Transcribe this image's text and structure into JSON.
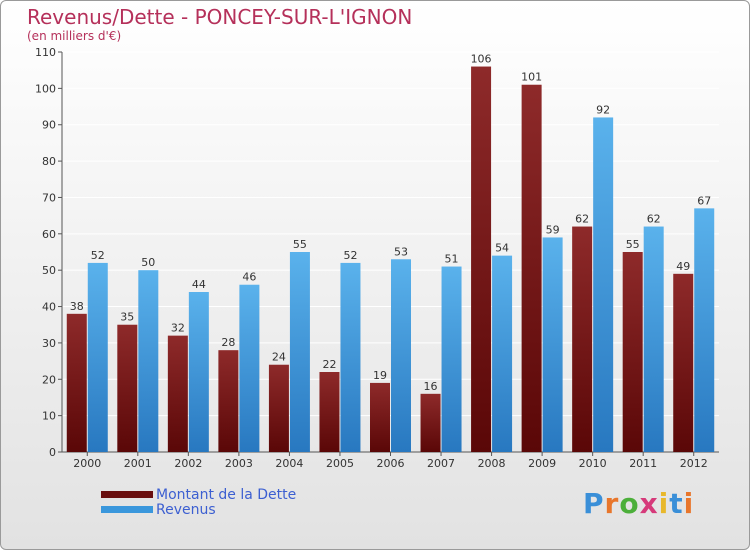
{
  "chart_data": {
    "type": "bar",
    "title": "Revenus/Dette - PONCEY-SUR-L'IGNON",
    "subtitle": "(en milliers d'€)",
    "xlabel": "",
    "ylabel": "",
    "ylim": [
      0,
      110
    ],
    "yticks": [
      0,
      10,
      20,
      30,
      40,
      50,
      60,
      70,
      80,
      90,
      100,
      110
    ],
    "grid": true,
    "categories": [
      "2000",
      "2001",
      "2002",
      "2003",
      "2004",
      "2005",
      "2006",
      "2007",
      "2008",
      "2009",
      "2010",
      "2011",
      "2012"
    ],
    "series": [
      {
        "name": "Montant de la Dette",
        "color": "#7a1a1a",
        "values": [
          38,
          35,
          32,
          28,
          24,
          22,
          19,
          16,
          106,
          101,
          62,
          55,
          49
        ]
      },
      {
        "name": "Revenus",
        "color": "#3a97dc",
        "values": [
          52,
          50,
          44,
          46,
          55,
          52,
          53,
          51,
          54,
          59,
          92,
          62,
          67
        ]
      }
    ],
    "legend_position": "bottom-left"
  },
  "brand": {
    "logo_text": "Proxiti"
  }
}
